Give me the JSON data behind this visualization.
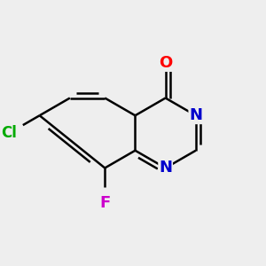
{
  "bg_color": "#eeeeee",
  "bond_color": "#000000",
  "bond_width": 1.8,
  "dbo": 0.018,
  "atom_labels": {
    "O": {
      "color": "#ff0000",
      "fontsize": 13,
      "fontweight": "bold"
    },
    "N": {
      "color": "#0000cc",
      "fontsize": 13,
      "fontweight": "bold"
    },
    "Cl": {
      "color": "#00aa00",
      "fontsize": 12,
      "fontweight": "bold"
    },
    "F": {
      "color": "#cc00cc",
      "fontsize": 13,
      "fontweight": "bold"
    }
  },
  "xlim": [
    0.0,
    1.0
  ],
  "ylim": [
    0.0,
    1.0
  ]
}
